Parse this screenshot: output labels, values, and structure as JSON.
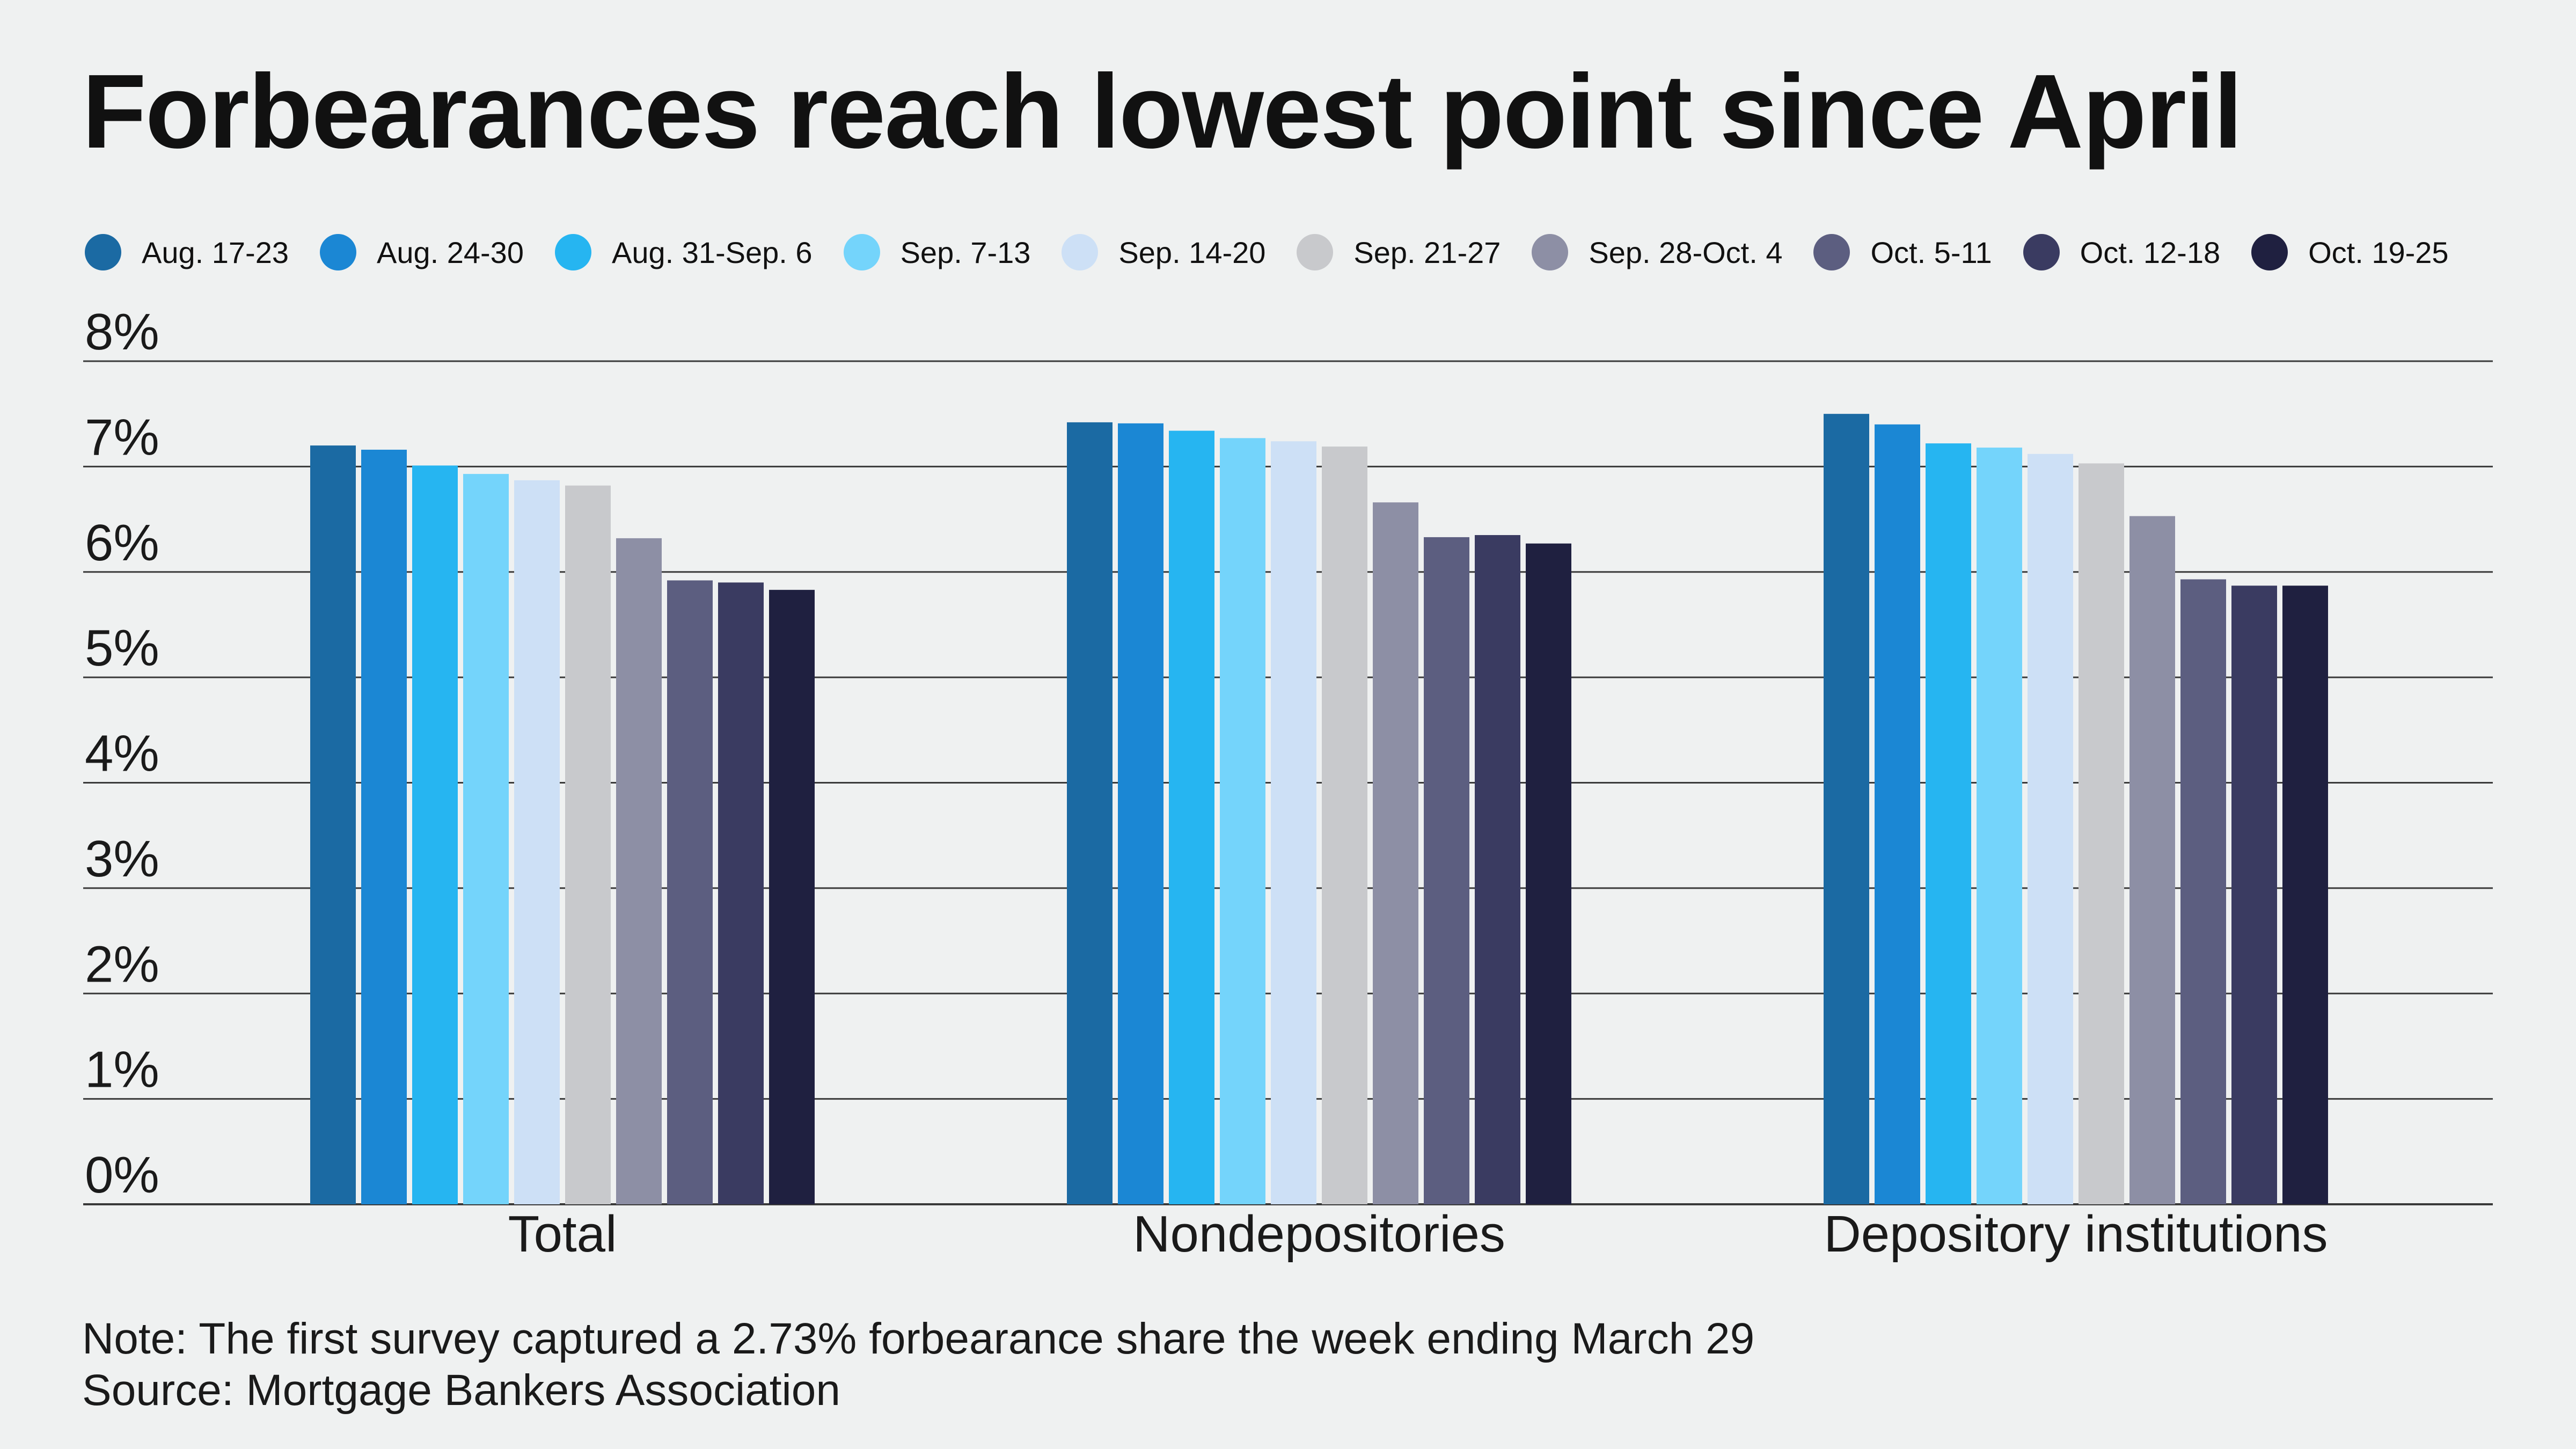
{
  "chart_data": {
    "type": "bar",
    "title": "Forbearances reach lowest point since April",
    "categories": [
      "Total",
      "Nondepositories",
      "Depository institutions"
    ],
    "series": [
      {
        "name": "Aug. 17-23",
        "color": "#1b6aa3",
        "values": [
          7.2,
          7.42,
          7.5
        ]
      },
      {
        "name": "Aug. 24-30",
        "color": "#1b87d4",
        "values": [
          7.16,
          7.41,
          7.4
        ]
      },
      {
        "name": "Aug. 31-Sep. 6",
        "color": "#26b5f1",
        "values": [
          7.01,
          7.34,
          7.22
        ]
      },
      {
        "name": "Sep. 7-13",
        "color": "#74d4fb",
        "values": [
          6.93,
          7.27,
          7.18
        ]
      },
      {
        "name": "Sep. 14-20",
        "color": "#cde0f6",
        "values": [
          6.87,
          7.24,
          7.12
        ]
      },
      {
        "name": "Sep. 21-27",
        "color": "#c8c9cc",
        "values": [
          6.82,
          7.19,
          7.03
        ]
      },
      {
        "name": "Sep. 28-Oct. 4",
        "color": "#8d8fa5",
        "values": [
          6.32,
          6.66,
          6.53
        ]
      },
      {
        "name": "Oct. 5-11",
        "color": "#5c5e80",
        "values": [
          5.92,
          6.33,
          5.93
        ]
      },
      {
        "name": "Oct. 12-18",
        "color": "#3a3b61",
        "values": [
          5.9,
          6.35,
          5.87
        ]
      },
      {
        "name": "Oct. 19-25",
        "color": "#1f2040",
        "values": [
          5.83,
          6.27,
          5.87
        ]
      }
    ],
    "ylim": [
      0,
      8
    ],
    "yticks": [
      "0%",
      "1%",
      "2%",
      "3%",
      "4%",
      "5%",
      "6%",
      "7%",
      "8%"
    ],
    "grid": true,
    "legend_position": "top"
  },
  "footer": {
    "note": "Note: The first survey captured a 2.73% forbearance share the week ending March 29",
    "source": "Source: Mortgage Bankers Association"
  }
}
